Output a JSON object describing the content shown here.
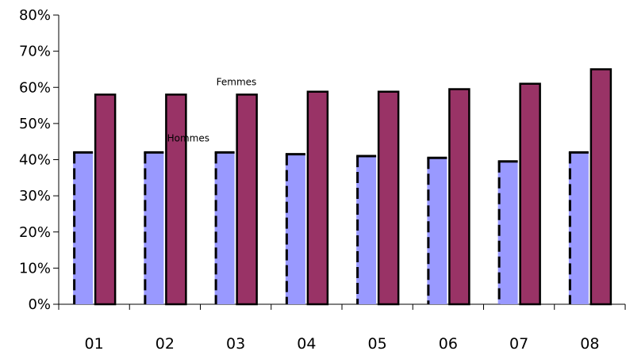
{
  "chart_data": {
    "type": "bar",
    "categories": [
      "01",
      "02",
      "03",
      "04",
      "05",
      "06",
      "07",
      "08"
    ],
    "series": [
      {
        "name": "Hommes",
        "values": [
          42,
          42,
          42,
          41.5,
          41,
          40.5,
          39.5,
          42
        ],
        "color": "#9999ff",
        "border": "dashed"
      },
      {
        "name": "Femmes",
        "values": [
          58,
          58,
          58,
          58.8,
          58.8,
          59.5,
          61,
          65
        ],
        "color": "#993366",
        "border": "solid"
      }
    ],
    "yticks": [
      "0%",
      "10%",
      "20%",
      "30%",
      "40%",
      "50%",
      "60%",
      "70%",
      "80%"
    ],
    "ylim": [
      0,
      80
    ],
    "title": "",
    "xlabel": "",
    "ylabel": "",
    "grid": false,
    "legend": "none",
    "annotations": [
      {
        "text": "Femmes",
        "series": "Femmes",
        "category": "03"
      },
      {
        "text": "Hommes",
        "series": "Hommes",
        "category": "03"
      }
    ]
  }
}
